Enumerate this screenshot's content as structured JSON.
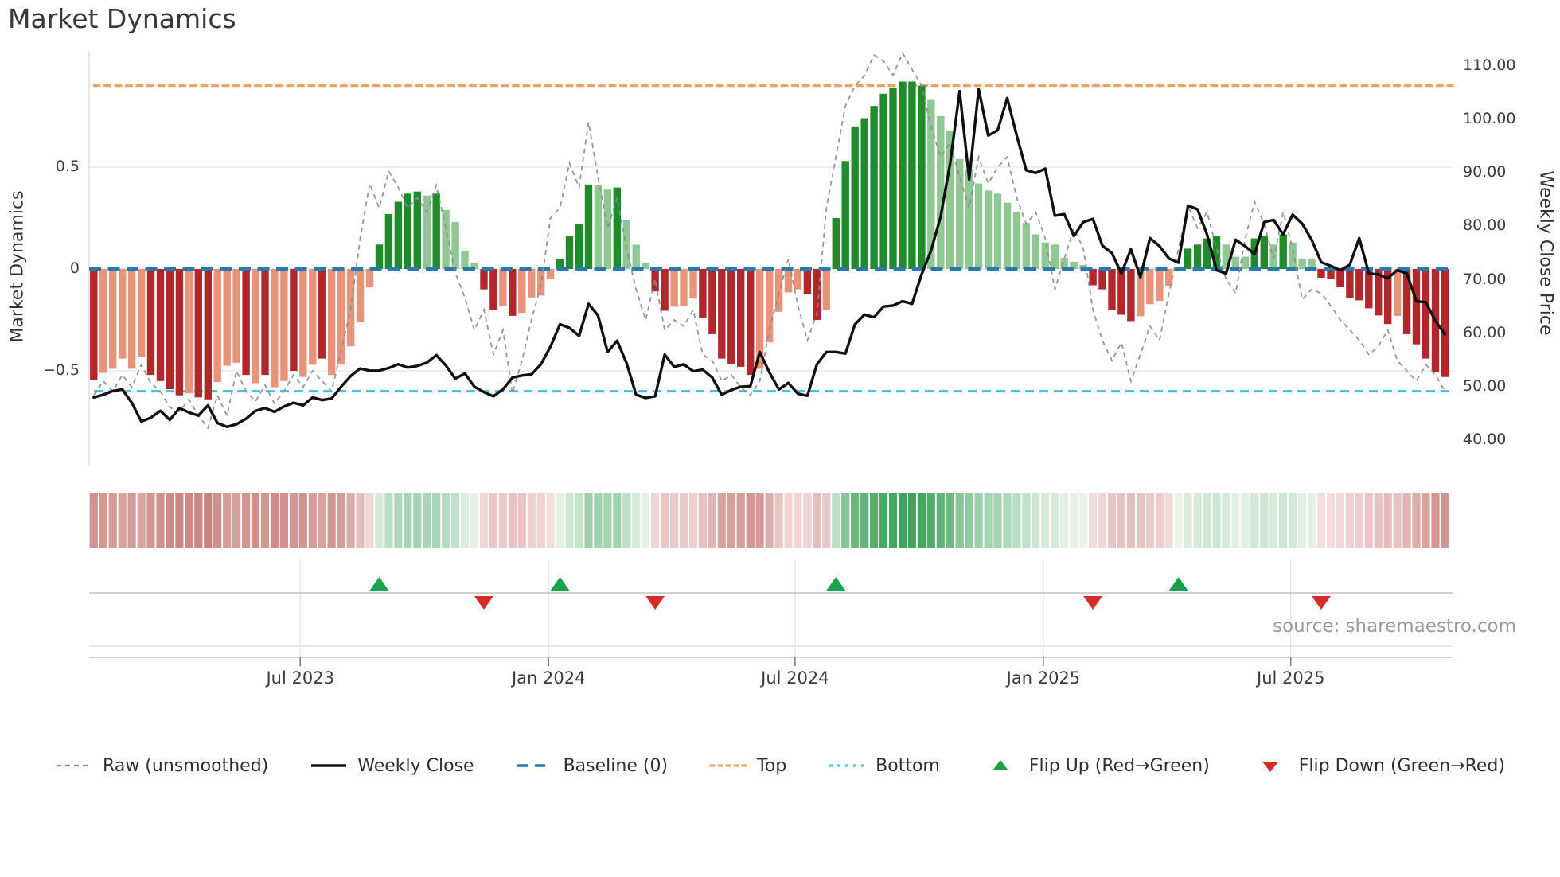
{
  "title": "Market Dynamics",
  "source_text": "source: sharemaestro.com",
  "left_axis": {
    "title": "Market Dynamics",
    "ticks": [
      {
        "label": "0.5",
        "value": 0.5
      },
      {
        "label": "0",
        "value": 0.0
      },
      {
        "label": "−0.5",
        "value": -0.5
      }
    ]
  },
  "right_axis": {
    "title": "Weekly Close Price",
    "ticks": [
      {
        "label": "110.00",
        "value": 110
      },
      {
        "label": "100.00",
        "value": 100
      },
      {
        "label": "90.00",
        "value": 90
      },
      {
        "label": "80.00",
        "value": 80
      },
      {
        "label": "70.00",
        "value": 70
      },
      {
        "label": "60.00",
        "value": 60
      },
      {
        "label": "50.00",
        "value": 50
      },
      {
        "label": "40.00",
        "value": 40
      }
    ]
  },
  "x_axis": {
    "ticks": [
      {
        "label": "Jul 2023",
        "pos": 21.7
      },
      {
        "label": "Jan 2024",
        "pos": 47.8
      },
      {
        "label": "Jul 2024",
        "pos": 73.7
      },
      {
        "label": "Jan 2025",
        "pos": 99.8
      },
      {
        "label": "Jul 2025",
        "pos": 125.8
      }
    ]
  },
  "legend": {
    "items": [
      {
        "label": "Raw (unsmoothed)",
        "swatch": "dash-gray",
        "name": "raw-line"
      },
      {
        "label": "Weekly Close",
        "swatch": "solid-black",
        "name": "weekly-close-line"
      },
      {
        "label": "Baseline (0)",
        "swatch": "dash-blue",
        "name": "baseline-line"
      },
      {
        "label": "Top",
        "swatch": "dot-orange",
        "name": "top-line"
      },
      {
        "label": "Bottom",
        "swatch": "dot-cyan",
        "name": "bottom-line"
      },
      {
        "label": "Flip Up (Red→Green)",
        "swatch": "tri-up",
        "name": "flip-up-marker"
      },
      {
        "label": "Flip Down (Green→Red)",
        "swatch": "tri-down",
        "name": "flip-down-marker"
      }
    ]
  },
  "colors": {
    "bar_pos_strong": "#1f8b2b",
    "bar_pos_weak": "#8fc892",
    "bar_neg_strong": "#b3262b",
    "bar_neg_weak": "#e8947b",
    "baseline": "#2779b0",
    "top_line": "#f0a35e",
    "bottom_line": "#3ec0e4",
    "close_line": "#101010",
    "raw_line": "#8c8c8c",
    "flip_up": "#18a249",
    "flip_down": "#d62b28",
    "grid": "#e7e9f2",
    "panel_line": "#c4c4c4",
    "heat_pos_deep": "#3fa35a",
    "heat_pos_pale": "#ecf5ed",
    "heat_neg_deep": "#c8817d",
    "heat_neg_pale": "#f7e6e4"
  },
  "chart_data": {
    "type": "bar+line combo (weekly oscillator with price overlay, heatmap strip and flip markers)",
    "x_unit": "week",
    "baseline": 0,
    "top_threshold": 0.9,
    "bottom_threshold": -0.6,
    "left_ylim": [
      -0.9,
      1.07
    ],
    "right_ylim": [
      38,
      112
    ],
    "grid": "horizontal at 0.5, 0, -0.5",
    "legend_position": "bottom center",
    "flip_up_indices": [
      30,
      49,
      78,
      114
    ],
    "flip_down_indices": [
      41,
      59,
      105,
      129
    ],
    "series": [
      {
        "name": "Market Dynamics (bars)",
        "type": "bar",
        "axis": "left",
        "shade_key": "d=strong color, l=light color",
        "shades": "dlllllddddlddllldldlldlldllllldddddldllllddldllllddddlldlllddlllddddddlllllddlddddddddddllllllllllllllllldddddlllldddddlllddldlllddddddddlddddd",
        "values": [
          -0.545,
          -0.51,
          -0.49,
          -0.44,
          -0.49,
          -0.43,
          -0.52,
          -0.55,
          -0.59,
          -0.62,
          -0.61,
          -0.63,
          -0.64,
          -0.555,
          -0.475,
          -0.46,
          -0.52,
          -0.56,
          -0.52,
          -0.58,
          -0.55,
          -0.5,
          -0.53,
          -0.47,
          -0.44,
          -0.52,
          -0.47,
          -0.38,
          -0.26,
          -0.09,
          0.12,
          0.27,
          0.33,
          0.37,
          0.38,
          0.36,
          0.37,
          0.29,
          0.23,
          0.09,
          0.03,
          -0.1,
          -0.2,
          -0.18,
          -0.23,
          -0.215,
          -0.14,
          -0.13,
          -0.05,
          0.05,
          0.16,
          0.22,
          0.415,
          0.41,
          0.39,
          0.4,
          0.24,
          0.12,
          0.03,
          -0.11,
          -0.205,
          -0.185,
          -0.18,
          -0.145,
          -0.24,
          -0.32,
          -0.44,
          -0.465,
          -0.48,
          -0.52,
          -0.49,
          -0.36,
          -0.21,
          -0.115,
          -0.1,
          -0.125,
          -0.25,
          -0.2,
          0.25,
          0.53,
          0.7,
          0.74,
          0.8,
          0.86,
          0.89,
          0.92,
          0.92,
          0.9,
          0.83,
          0.75,
          0.68,
          0.54,
          0.49,
          0.42,
          0.385,
          0.37,
          0.325,
          0.28,
          0.225,
          0.17,
          0.13,
          0.12,
          0.055,
          0.035,
          0.02,
          -0.08,
          -0.1,
          -0.2,
          -0.225,
          -0.256,
          -0.232,
          -0.173,
          -0.157,
          -0.086,
          0.01,
          0.1,
          0.12,
          0.15,
          0.16,
          0.12,
          0.06,
          0.06,
          0.15,
          0.16,
          0.12,
          0.17,
          0.13,
          0.05,
          0.05,
          -0.043,
          -0.05,
          -0.09,
          -0.142,
          -0.154,
          -0.193,
          -0.228,
          -0.27,
          -0.23,
          -0.32,
          -0.37,
          -0.44,
          -0.507,
          -0.53
        ]
      },
      {
        "name": "Raw (unsmoothed)",
        "type": "line",
        "axis": "left",
        "style": "dashed gray",
        "values": [
          -0.62,
          -0.55,
          -0.6,
          -0.52,
          -0.58,
          -0.47,
          -0.56,
          -0.6,
          -0.68,
          -0.7,
          -0.64,
          -0.72,
          -0.78,
          -0.62,
          -0.72,
          -0.5,
          -0.6,
          -0.65,
          -0.57,
          -0.66,
          -0.6,
          -0.52,
          -0.58,
          -0.5,
          -0.55,
          -0.6,
          -0.4,
          -0.2,
          0.15,
          0.42,
          0.3,
          0.48,
          0.4,
          0.3,
          0.35,
          0.28,
          0.41,
          0.2,
          -0.02,
          -0.14,
          -0.3,
          -0.2,
          -0.42,
          -0.3,
          -0.61,
          -0.45,
          -0.25,
          -0.08,
          0.25,
          0.3,
          0.52,
          0.4,
          0.72,
          0.45,
          0.2,
          0.35,
          0.1,
          -0.1,
          -0.25,
          -0.05,
          -0.3,
          -0.25,
          -0.28,
          -0.2,
          -0.42,
          -0.45,
          -0.55,
          -0.52,
          -0.58,
          -0.62,
          -0.55,
          -0.3,
          -0.12,
          0.05,
          -0.18,
          -0.35,
          -0.22,
          0.3,
          0.55,
          0.8,
          0.9,
          0.95,
          1.05,
          1.02,
          0.95,
          1.06,
          0.98,
          0.9,
          0.7,
          0.55,
          0.62,
          0.45,
          0.3,
          0.55,
          0.42,
          0.5,
          0.55,
          0.35,
          0.22,
          0.28,
          0.15,
          -0.1,
          0.05,
          0.2,
          0.1,
          -0.2,
          -0.35,
          -0.45,
          -0.36,
          -0.55,
          -0.42,
          -0.28,
          -0.35,
          -0.12,
          0.1,
          0.31,
          0.2,
          0.28,
          0.1,
          -0.05,
          -0.12,
          0.15,
          0.33,
          0.22,
          0.05,
          0.28,
          0.1,
          -0.15,
          -0.1,
          -0.12,
          -0.18,
          -0.25,
          -0.3,
          -0.35,
          -0.42,
          -0.38,
          -0.3,
          -0.45,
          -0.5,
          -0.55,
          -0.47,
          -0.52,
          -0.6
        ]
      },
      {
        "name": "Weekly Close",
        "type": "line",
        "axis": "right",
        "style": "solid black",
        "values": [
          48,
          48.5,
          49.2,
          49.5,
          47,
          43.5,
          44.2,
          45.5,
          43.8,
          46,
          45.2,
          44.6,
          46.5,
          43.2,
          42.5,
          43,
          44,
          45.5,
          46,
          45.3,
          46.3,
          47,
          46.5,
          48,
          47.5,
          47.8,
          50,
          52,
          53.4,
          53,
          53,
          53.5,
          54.2,
          53.6,
          53.9,
          54.5,
          55.9,
          54,
          51.5,
          52.5,
          50,
          49,
          48.2,
          49.5,
          51.7,
          52.1,
          52.3,
          54.2,
          57.5,
          61.7,
          61,
          59.5,
          65.5,
          63.3,
          56.5,
          58.6,
          54.4,
          48.5,
          47.9,
          48.2,
          56,
          53.7,
          54.2,
          52.9,
          53.2,
          51.7,
          48.5,
          49.4,
          50,
          50.1,
          56.5,
          52.7,
          49.5,
          50.7,
          48.7,
          48.3,
          54.2,
          56.5,
          56.5,
          56.2,
          61.7,
          63.5,
          63,
          65,
          65.2,
          66,
          65.5,
          71,
          75.5,
          81.8,
          91.8,
          105.3,
          88.8,
          105.7,
          97,
          98,
          104,
          97,
          90.5,
          90,
          90.8,
          82,
          82.3,
          78.2,
          80.8,
          81.4,
          76.4,
          75,
          71.2,
          75.7,
          70.5,
          77.8,
          76.3,
          74,
          73.2,
          83.9,
          83.2,
          78.5,
          71.8,
          71.2,
          77.5,
          76.3,
          74.8,
          80.8,
          81.2,
          78.5,
          82.2,
          80.5,
          77.5,
          73.3,
          72.6,
          71.8,
          72.8,
          77.8,
          71.2,
          71,
          70.3,
          71.8,
          71.2,
          66,
          65.8,
          62.3,
          59.8
        ]
      },
      {
        "name": "Heatmap strip",
        "type": "heatmap",
        "note": "same values as bars, muted red-green scale"
      }
    ]
  }
}
